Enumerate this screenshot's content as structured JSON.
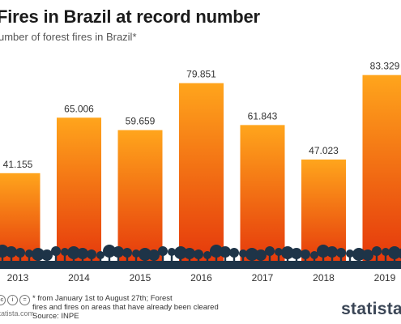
{
  "title": "Fires in Brazil at record number",
  "subtitle": "umber of forest fires in Brazil*",
  "footnote_line1": "* from January 1st to August 27th; Forest",
  "footnote_line2": "fires and fires on areas that have already been cleared",
  "source": "Source: INPE",
  "site": "statista.com",
  "logo_text": "statista",
  "colors": {
    "bar_top": "#ffa51c",
    "bar_bottom": "#e4340b",
    "tree": "#1e3448"
  },
  "chart_data": {
    "type": "bar",
    "title": "Fires in Brazil at record number",
    "subtitle": "umber of forest fires in Brazil*",
    "categories": [
      "2013",
      "2014",
      "2015",
      "2016",
      "2017",
      "2018",
      "2019"
    ],
    "values": [
      41155,
      65006,
      59659,
      79851,
      61843,
      47023,
      83329
    ],
    "value_labels": [
      "41.155",
      "65.006",
      "59.659",
      "79.851",
      "61.843",
      "47.023",
      "83.329"
    ],
    "ylim": [
      0,
      94000
    ],
    "grid": false,
    "legend": "none"
  }
}
